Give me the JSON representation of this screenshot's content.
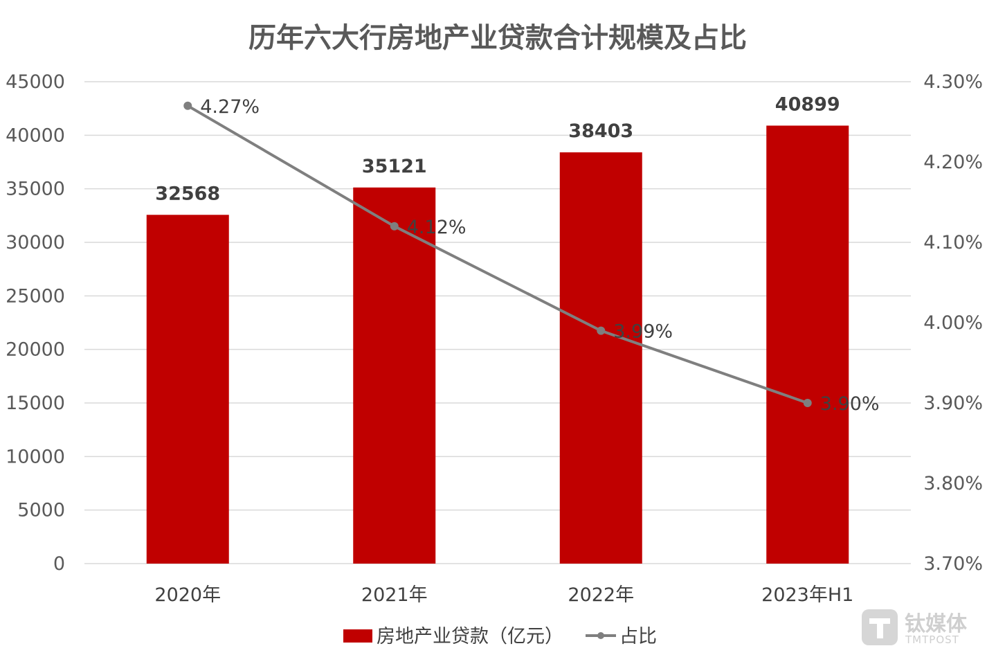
{
  "chart_data": {
    "type": "bar",
    "title": "历年六大行房地产业贷款合计规模及占比",
    "categories": [
      "2020年",
      "2021年",
      "2022年",
      "2023年H1"
    ],
    "series": [
      {
        "name": "房地产业贷款（亿元）",
        "type": "bar",
        "axis": "left",
        "values": [
          32568,
          35121,
          38403,
          40899
        ]
      },
      {
        "name": "占比",
        "type": "line",
        "axis": "right",
        "values": [
          4.27,
          4.12,
          3.99,
          3.9
        ]
      }
    ],
    "bar_labels": [
      "32568",
      "35121",
      "38403",
      "40899"
    ],
    "line_labels": [
      "4.27%",
      "4.12%",
      "3.99%",
      "3.90%"
    ],
    "left_axis": {
      "ylim": [
        0,
        45000
      ],
      "ticks": [
        "0",
        "5000",
        "10000",
        "15000",
        "20000",
        "25000",
        "30000",
        "35000",
        "40000",
        "45000"
      ]
    },
    "right_axis": {
      "ylim": [
        3.7,
        4.3
      ],
      "ticks": [
        "3.70%",
        "3.80%",
        "3.90%",
        "4.00%",
        "4.10%",
        "4.20%",
        "4.30%"
      ]
    },
    "grid": true,
    "legend_position": "bottom",
    "colors": {
      "bar": "#c00000",
      "line": "#7f7f7f",
      "grid": "#d9d9d9"
    }
  },
  "watermark": {
    "name": "钛媒体",
    "sub": "TMTPOST",
    "icon": "tmtpost-logo-icon"
  }
}
